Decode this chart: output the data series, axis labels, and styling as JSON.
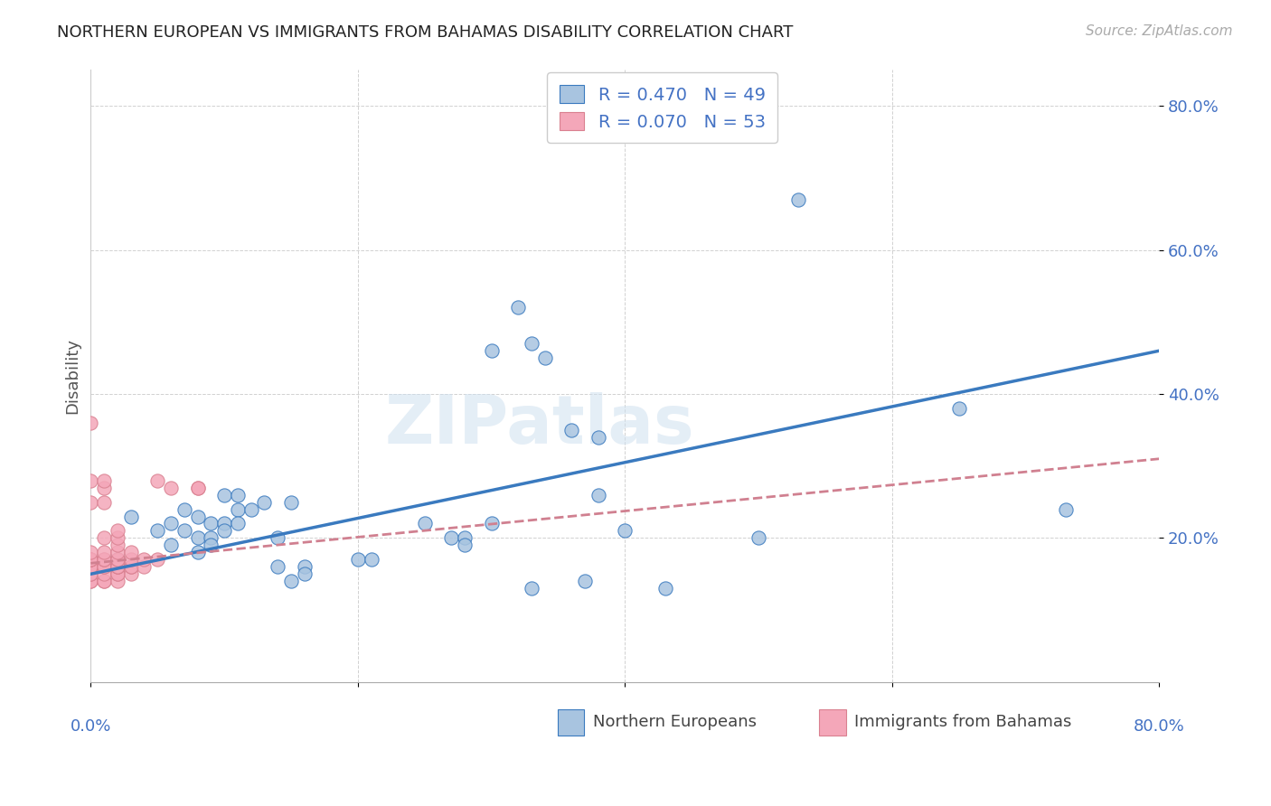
{
  "title": "NORTHERN EUROPEAN VS IMMIGRANTS FROM BAHAMAS DISABILITY CORRELATION CHART",
  "source": "Source: ZipAtlas.com",
  "ylabel": "Disability",
  "ytick_vals": [
    0.2,
    0.4,
    0.6,
    0.8
  ],
  "ytick_labels": [
    "20.0%",
    "40.0%",
    "60.0%",
    "80.0%"
  ],
  "xrange": [
    0.0,
    0.8
  ],
  "yrange": [
    0.0,
    0.85
  ],
  "watermark": "ZIPatlas",
  "legend_line1": "R = 0.470   N = 49",
  "legend_line2": "R = 0.070   N = 53",
  "blue_color": "#a8c4e0",
  "pink_color": "#f4a7b9",
  "blue_line_color": "#3a7abf",
  "pink_line_color": "#d08090",
  "pink_edge_color": "#d98090",
  "blue_scatter": [
    [
      0.02,
      0.17
    ],
    [
      0.03,
      0.23
    ],
    [
      0.05,
      0.21
    ],
    [
      0.06,
      0.22
    ],
    [
      0.06,
      0.19
    ],
    [
      0.07,
      0.24
    ],
    [
      0.07,
      0.21
    ],
    [
      0.08,
      0.23
    ],
    [
      0.08,
      0.2
    ],
    [
      0.08,
      0.18
    ],
    [
      0.09,
      0.22
    ],
    [
      0.09,
      0.2
    ],
    [
      0.09,
      0.19
    ],
    [
      0.1,
      0.26
    ],
    [
      0.1,
      0.22
    ],
    [
      0.1,
      0.21
    ],
    [
      0.11,
      0.26
    ],
    [
      0.11,
      0.24
    ],
    [
      0.11,
      0.22
    ],
    [
      0.12,
      0.24
    ],
    [
      0.13,
      0.25
    ],
    [
      0.14,
      0.2
    ],
    [
      0.14,
      0.16
    ],
    [
      0.15,
      0.25
    ],
    [
      0.15,
      0.14
    ],
    [
      0.16,
      0.16
    ],
    [
      0.16,
      0.15
    ],
    [
      0.2,
      0.17
    ],
    [
      0.21,
      0.17
    ],
    [
      0.25,
      0.22
    ],
    [
      0.27,
      0.2
    ],
    [
      0.28,
      0.2
    ],
    [
      0.28,
      0.19
    ],
    [
      0.3,
      0.22
    ],
    [
      0.3,
      0.46
    ],
    [
      0.32,
      0.52
    ],
    [
      0.33,
      0.47
    ],
    [
      0.33,
      0.13
    ],
    [
      0.34,
      0.45
    ],
    [
      0.36,
      0.35
    ],
    [
      0.37,
      0.14
    ],
    [
      0.38,
      0.26
    ],
    [
      0.38,
      0.34
    ],
    [
      0.4,
      0.21
    ],
    [
      0.43,
      0.13
    ],
    [
      0.5,
      0.2
    ],
    [
      0.53,
      0.67
    ],
    [
      0.65,
      0.38
    ],
    [
      0.73,
      0.24
    ]
  ],
  "pink_scatter": [
    [
      0.0,
      0.14
    ],
    [
      0.0,
      0.14
    ],
    [
      0.0,
      0.15
    ],
    [
      0.0,
      0.15
    ],
    [
      0.0,
      0.16
    ],
    [
      0.0,
      0.16
    ],
    [
      0.0,
      0.16
    ],
    [
      0.0,
      0.16
    ],
    [
      0.0,
      0.16
    ],
    [
      0.0,
      0.17
    ],
    [
      0.0,
      0.17
    ],
    [
      0.0,
      0.17
    ],
    [
      0.0,
      0.17
    ],
    [
      0.0,
      0.18
    ],
    [
      0.0,
      0.25
    ],
    [
      0.0,
      0.28
    ],
    [
      0.0,
      0.36
    ],
    [
      0.01,
      0.14
    ],
    [
      0.01,
      0.14
    ],
    [
      0.01,
      0.15
    ],
    [
      0.01,
      0.16
    ],
    [
      0.01,
      0.16
    ],
    [
      0.01,
      0.17
    ],
    [
      0.01,
      0.17
    ],
    [
      0.01,
      0.18
    ],
    [
      0.01,
      0.2
    ],
    [
      0.01,
      0.25
    ],
    [
      0.01,
      0.27
    ],
    [
      0.01,
      0.28
    ],
    [
      0.02,
      0.14
    ],
    [
      0.02,
      0.15
    ],
    [
      0.02,
      0.15
    ],
    [
      0.02,
      0.16
    ],
    [
      0.02,
      0.16
    ],
    [
      0.02,
      0.16
    ],
    [
      0.02,
      0.17
    ],
    [
      0.02,
      0.17
    ],
    [
      0.02,
      0.18
    ],
    [
      0.02,
      0.19
    ],
    [
      0.02,
      0.2
    ],
    [
      0.02,
      0.21
    ],
    [
      0.03,
      0.15
    ],
    [
      0.03,
      0.16
    ],
    [
      0.03,
      0.16
    ],
    [
      0.03,
      0.17
    ],
    [
      0.03,
      0.18
    ],
    [
      0.04,
      0.16
    ],
    [
      0.04,
      0.17
    ],
    [
      0.05,
      0.17
    ],
    [
      0.05,
      0.28
    ],
    [
      0.06,
      0.27
    ],
    [
      0.08,
      0.27
    ],
    [
      0.08,
      0.27
    ]
  ],
  "blue_line_x": [
    0.0,
    0.8
  ],
  "blue_line_y": [
    0.15,
    0.46
  ],
  "pink_line_x": [
    0.0,
    0.8
  ],
  "pink_line_y": [
    0.165,
    0.31
  ],
  "bottom_legend_label1": "Northern Europeans",
  "bottom_legend_label2": "Immigrants from Bahamas"
}
